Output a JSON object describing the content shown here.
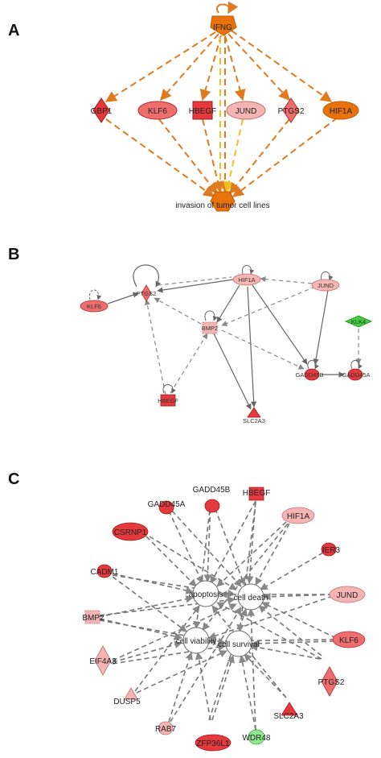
{
  "panels": {
    "A": {
      "label": "A",
      "hub": "IFNG",
      "nodes": [
        "GBP1",
        "KLF6",
        "HBEGF",
        "JUND",
        "PTGS2",
        "HIF1A"
      ],
      "target": "invasion of tumor cell lines"
    },
    "B": {
      "label": "B",
      "nodes": [
        "KLF6",
        "PTGS2",
        "HIF1A",
        "JUND",
        "BMP2",
        "KLK4",
        "GADD45B",
        "GADD45A",
        "HBEGF",
        "SLC2A3"
      ]
    },
    "C": {
      "label": "C",
      "functions": [
        "apoptosis",
        "cell death",
        "cell viability",
        "cell survival"
      ],
      "nodes": [
        "GADD45B",
        "HBEGF",
        "GADD45A",
        "HIF1A",
        "CSRNP1",
        "IER3",
        "CADM1",
        "JUND",
        "BMP2",
        "KLF6",
        "EIF4A3",
        "PTGS2",
        "DUSP5",
        "SLC2A3",
        "RAB7",
        "ZFP36L1",
        "WDR48"
      ]
    }
  },
  "colors": {
    "orange_dark": "#e8730c",
    "orange_edge": "#e07a20",
    "yellow_edge": "#f0c020",
    "red": "#e5393d",
    "red_mid": "#ee6d6d",
    "pink": "#f6b5b5",
    "green": "#40d040",
    "green_light": "#8fe88f"
  }
}
